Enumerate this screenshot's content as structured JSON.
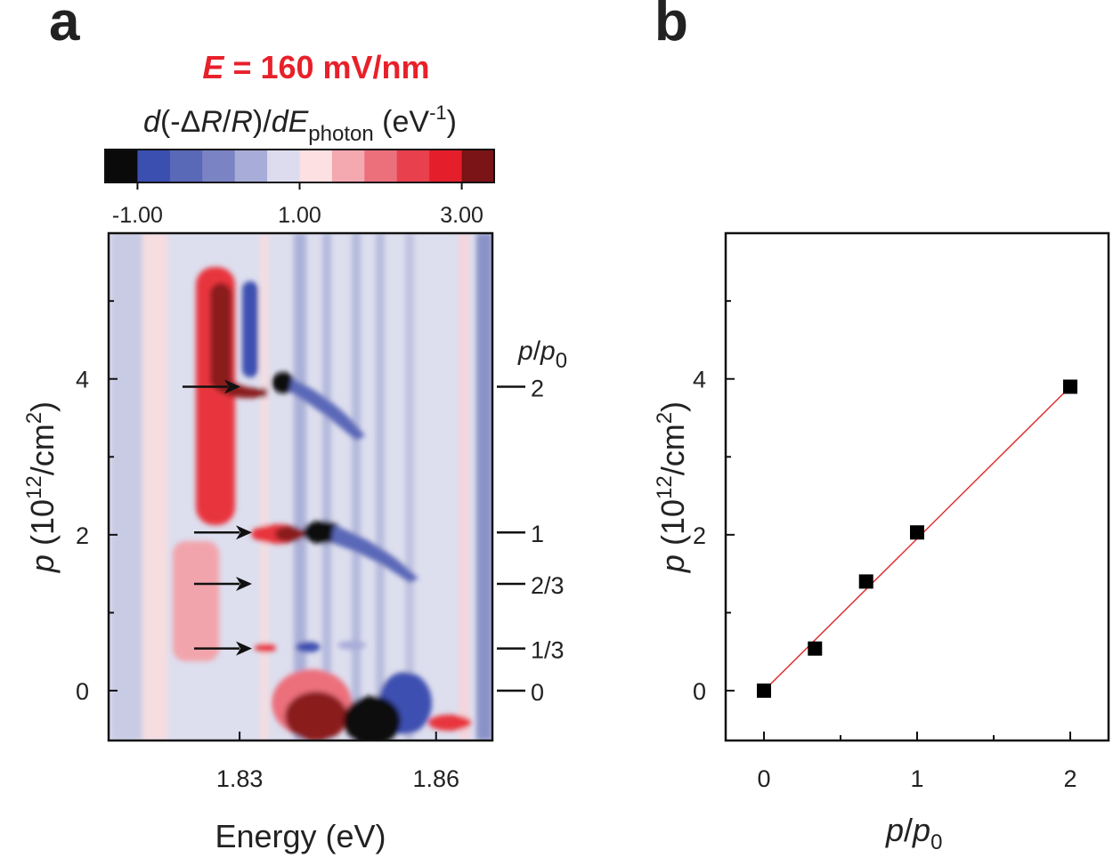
{
  "panel_labels": [
    "a",
    "b"
  ],
  "chart_data": [
    {
      "type": "heatmap",
      "title": [
        "E",
        " = 160 mV/nm"
      ],
      "title_color": "#e8202a",
      "colorbar_label": [
        "d",
        "(-Δ",
        "R",
        "/",
        "R",
        ")/",
        "d",
        "E",
        "photon",
        " (eV",
        "-1",
        ")"
      ],
      "colorbar_colors": [
        "#0a0a0a",
        "#3a4fb0",
        "#5a68b8",
        "#7a84c4",
        "#a8acd8",
        "#dcdcee",
        "#fce0e2",
        "#f4a8b0",
        "#ec6f7c",
        "#e8404c",
        "#e41e2a",
        "#7a1416"
      ],
      "clim": [
        -1.4,
        3.4
      ],
      "cticks": [
        {
          "value": -1,
          "label": "-1.00"
        },
        {
          "value": 1,
          "label": "1.00"
        },
        {
          "value": 3,
          "label": "3.00"
        }
      ],
      "x_label": "Energy (eV)",
      "y_label": [
        "p",
        " (10",
        "12",
        "/cm",
        "2",
        ")"
      ],
      "xlim": [
        1.81,
        1.8686
      ],
      "xticks": [
        1.83,
        1.86
      ],
      "ylim": [
        -0.64,
        5.87
      ],
      "yticks": [
        0,
        2,
        4
      ],
      "yminorticks": [
        1,
        3,
        5
      ],
      "right_label": [
        "p",
        "/",
        "p",
        "0"
      ],
      "right_ticks": [
        {
          "value": 3.9,
          "label": "2"
        },
        {
          "value": 2.03,
          "label": "1"
        },
        {
          "value": 1.37,
          "label": "2/3"
        },
        {
          "value": 0.54,
          "label": "1/3"
        },
        {
          "value": 0,
          "label": "0"
        }
      ],
      "arrows": [
        3.9,
        2.03,
        1.37,
        0.54
      ]
    },
    {
      "type": "scatter",
      "x": [
        0,
        0.333,
        0.667,
        1,
        2
      ],
      "y": [
        0,
        0.54,
        1.4,
        2.03,
        3.9
      ],
      "color": "#000000",
      "fit": {
        "x": [
          0,
          2
        ],
        "y": [
          0,
          3.9
        ],
        "color": "#e03030"
      },
      "x_label": [
        "p",
        "/",
        "p",
        "0"
      ],
      "y_label": [
        "p",
        " (10",
        "12",
        "/cm",
        "2",
        ")"
      ],
      "xlim": [
        -0.25,
        2.25
      ],
      "xticks": [
        0,
        1,
        2
      ],
      "xminorticks": [
        0.5,
        1.5
      ],
      "ylim": [
        -0.64,
        5.87
      ],
      "yticks": [
        0,
        2,
        4
      ],
      "yminorticks": [
        1,
        3,
        5
      ]
    }
  ]
}
